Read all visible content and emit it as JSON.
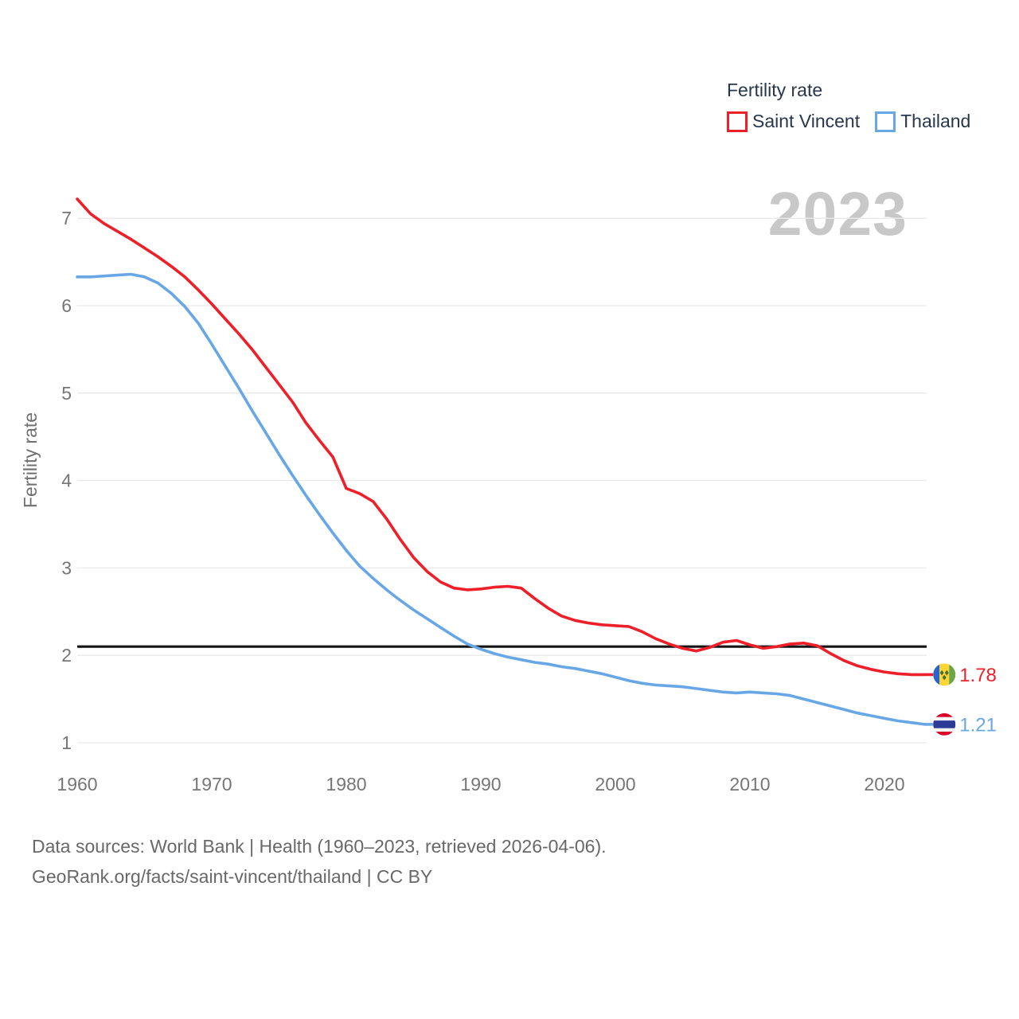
{
  "watermark": "2023",
  "legend": {
    "title": "Fertility rate"
  },
  "footer": {
    "line1": "Data sources: World Bank | Health (1960–2023, retrieved 2026-04-06).",
    "line2": "GeoRank.org/facts/saint-vincent/thailand | CC BY"
  },
  "chart_data": {
    "type": "line",
    "title": "Fertility rate",
    "ylabel": "Fertility rate",
    "xlim": [
      1960,
      2023
    ],
    "ylim": [
      0.85,
      7.4
    ],
    "x_ticks": [
      1960,
      1970,
      1980,
      1990,
      2000,
      2010,
      2020
    ],
    "y_ticks": [
      1,
      2,
      3,
      4,
      5,
      6,
      7
    ],
    "grid": "horizontal",
    "legend_position": "top-right",
    "reference_line": {
      "value": 2.1,
      "color": "#141414"
    },
    "years": [
      1960,
      1961,
      1962,
      1963,
      1964,
      1965,
      1966,
      1967,
      1968,
      1969,
      1970,
      1971,
      1972,
      1973,
      1974,
      1975,
      1976,
      1977,
      1978,
      1979,
      1980,
      1981,
      1982,
      1983,
      1984,
      1985,
      1986,
      1987,
      1988,
      1989,
      1990,
      1991,
      1992,
      1993,
      1994,
      1995,
      1996,
      1997,
      1998,
      1999,
      2000,
      2001,
      2002,
      2003,
      2004,
      2005,
      2006,
      2007,
      2008,
      2009,
      2010,
      2011,
      2012,
      2013,
      2014,
      2015,
      2016,
      2017,
      2018,
      2019,
      2020,
      2021,
      2022,
      2023
    ],
    "series": [
      {
        "name": "Saint Vincent",
        "color": "#ed1f29",
        "flag": "saint-vincent",
        "end_value_label": "1.78",
        "values": [
          7.22,
          7.05,
          6.94,
          6.85,
          6.76,
          6.66,
          6.56,
          6.45,
          6.33,
          6.18,
          6.02,
          5.85,
          5.68,
          5.5,
          5.3,
          5.1,
          4.9,
          4.66,
          4.46,
          4.27,
          3.91,
          3.85,
          3.76,
          3.56,
          3.33,
          3.12,
          2.96,
          2.84,
          2.77,
          2.75,
          2.76,
          2.78,
          2.79,
          2.77,
          2.65,
          2.54,
          2.45,
          2.4,
          2.37,
          2.35,
          2.34,
          2.33,
          2.27,
          2.19,
          2.13,
          2.08,
          2.05,
          2.09,
          2.15,
          2.17,
          2.12,
          2.08,
          2.1,
          2.13,
          2.14,
          2.11,
          2.02,
          1.94,
          1.88,
          1.84,
          1.81,
          1.79,
          1.78,
          1.78
        ]
      },
      {
        "name": "Thailand",
        "color": "#68a7e6",
        "flag": "thailand",
        "end_value_label": "1.21",
        "values": [
          6.33,
          6.33,
          6.34,
          6.35,
          6.36,
          6.33,
          6.26,
          6.14,
          5.99,
          5.8,
          5.56,
          5.31,
          5.06,
          4.8,
          4.55,
          4.3,
          4.06,
          3.83,
          3.61,
          3.4,
          3.2,
          3.02,
          2.88,
          2.75,
          2.63,
          2.52,
          2.42,
          2.32,
          2.22,
          2.13,
          2.07,
          2.02,
          1.98,
          1.95,
          1.92,
          1.9,
          1.87,
          1.85,
          1.82,
          1.79,
          1.75,
          1.71,
          1.68,
          1.66,
          1.65,
          1.64,
          1.62,
          1.6,
          1.58,
          1.57,
          1.58,
          1.57,
          1.56,
          1.54,
          1.5,
          1.46,
          1.42,
          1.38,
          1.34,
          1.31,
          1.28,
          1.25,
          1.23,
          1.21
        ]
      }
    ]
  }
}
